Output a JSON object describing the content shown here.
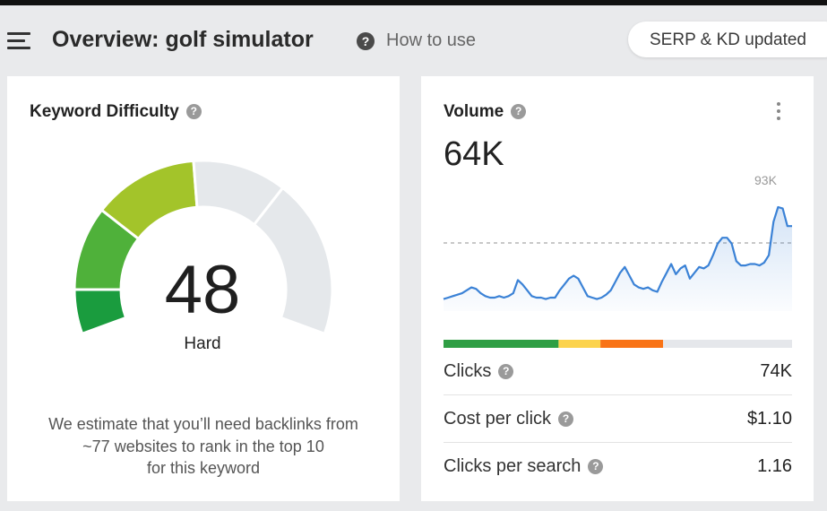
{
  "header": {
    "title": "Overview: golf simulator",
    "help_glyph": "?",
    "how_to_use": "How to use",
    "serp_status": "SERP & KD updated"
  },
  "keyword_difficulty": {
    "title": "Keyword Difficulty",
    "help_glyph": "?",
    "score": "48",
    "score_value": 48,
    "level": "Hard",
    "note_line1": "We estimate that you’ll need backlinks from",
    "note_line2": "~77 websites to rank in the top 10",
    "note_line3": "for this keyword",
    "gauge_colors": [
      "#1a9c3e",
      "#4fb13a",
      "#a3c42a",
      "#e5e8eb"
    ]
  },
  "volume": {
    "title": "Volume",
    "help_glyph": "?",
    "value": "64K",
    "peak_label": "93K",
    "trend_color": "#3b82d6",
    "distribution": [
      {
        "fraction": 0.33,
        "color": "#2f9e44"
      },
      {
        "fraction": 0.12,
        "color": "#fcd34d"
      },
      {
        "fraction": 0.18,
        "color": "#f97316"
      },
      {
        "fraction": 0.37,
        "color": "#e5e7eb"
      }
    ],
    "trend": [
      62,
      63,
      64,
      65,
      66,
      68,
      70,
      69,
      66,
      64,
      63,
      63,
      64,
      63,
      64,
      66,
      75,
      72,
      68,
      64,
      63,
      63,
      62,
      63,
      63,
      68,
      72,
      76,
      78,
      76,
      70,
      64,
      63,
      62,
      63,
      65,
      68,
      74,
      80,
      84,
      78,
      72,
      70,
      69,
      70,
      68,
      67,
      74,
      80,
      86,
      79,
      83,
      85,
      76,
      80,
      84,
      83,
      85,
      92,
      100,
      104,
      104,
      100,
      88,
      85,
      85,
      86,
      86,
      85,
      87,
      92,
      115,
      125,
      124,
      112,
      112
    ],
    "metrics": [
      {
        "label": "Clicks",
        "value": "74K"
      },
      {
        "label": "Cost per click",
        "value": "$1.10"
      },
      {
        "label": "Clicks per search",
        "value": "1.16"
      }
    ]
  }
}
